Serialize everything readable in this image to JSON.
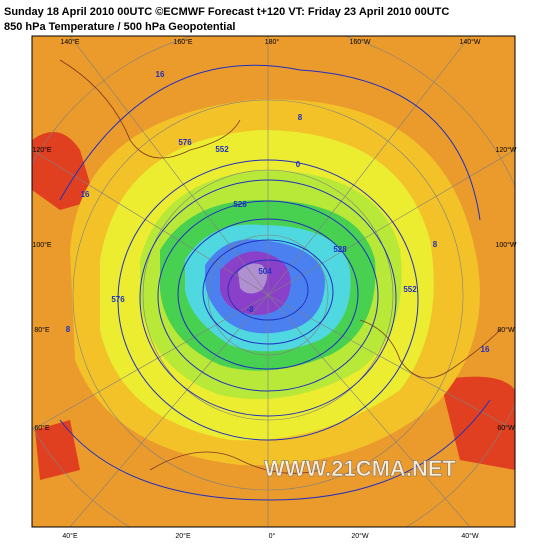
{
  "header": {
    "title": "Sunday 18 April 2010 00UTC ©ECMWF Forecast t+120 VT: Friday 23 April 2010 00UTC",
    "subtitle": "850 hPa Temperature / 500 hPa Geopotential"
  },
  "longitude_labels": {
    "top": [
      "140°E",
      "160°E",
      "180°",
      "160°W",
      "140°W"
    ],
    "left": [
      "120°E",
      "100°E",
      "80°E",
      "60°E"
    ],
    "right": [
      "120°W",
      "100°W",
      "80°W",
      "60°W"
    ],
    "bottom": [
      "40°E",
      "20°E",
      "0°",
      "20°W",
      "40°W"
    ]
  },
  "contour_labels": {
    "temperature": [
      "16",
      "8",
      "0",
      "-8",
      "16",
      "8",
      "16",
      "8"
    ],
    "geopotential": [
      "576",
      "552",
      "528",
      "504",
      "576",
      "552",
      "528"
    ]
  },
  "watermark": "WWW.21CMA.NET"
}
